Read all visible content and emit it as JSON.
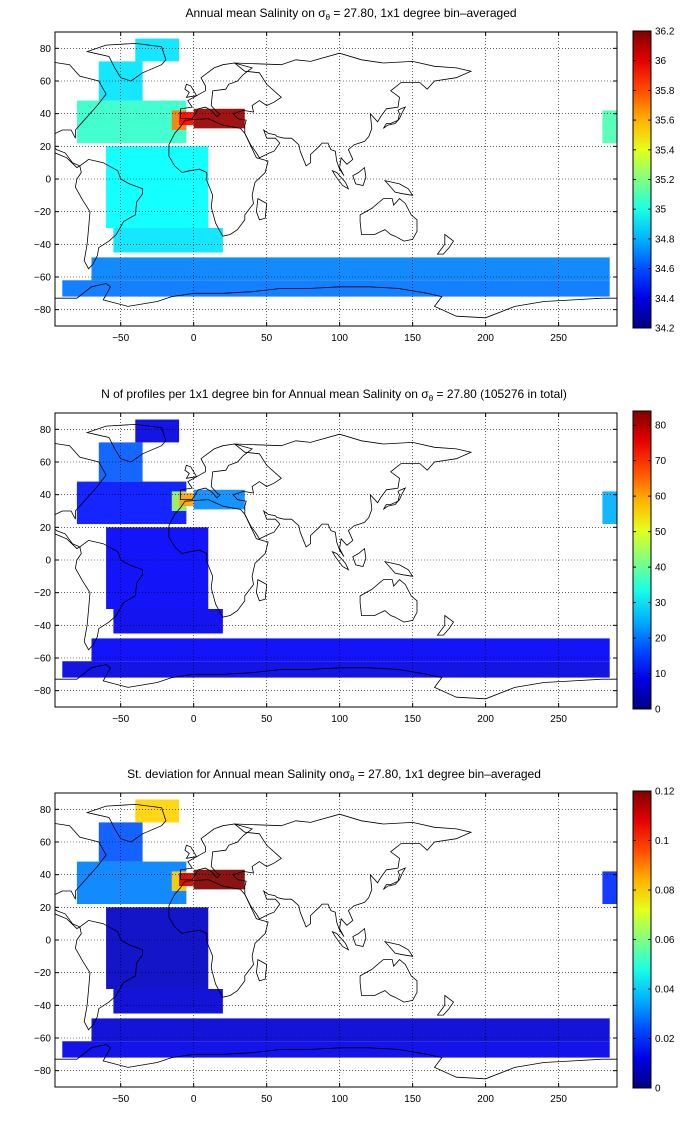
{
  "figure": {
    "panels": [
      {
        "title_pre": "Annual mean Salinity on ",
        "sigma": "σ",
        "theta": "θ",
        "title_post": " = 27.80, 1x1 degree bin–averaged"
      },
      {
        "title_pre": "N of profiles per 1x1 degree bin for Annual mean Salinity on ",
        "sigma": "σ",
        "theta": "θ",
        "title_post": " = 27.80 (105276 in total)"
      },
      {
        "title_pre": "St. deviation for Annual mean Salinity on",
        "sigma": "σ",
        "theta": "θ",
        "title_post": " = 27.80, 1x1 degree bin–averaged"
      }
    ]
  },
  "colors": {
    "colormap": "jet",
    "land_outline": "#000000",
    "grid": "#000000",
    "background": "#ffffff"
  },
  "chart_data": [
    {
      "type": "heatmap",
      "title": "Annual mean Salinity on σθ = 27.80, 1x1 degree bin–averaged",
      "xlim": [
        -95,
        290
      ],
      "ylim": [
        -90,
        90
      ],
      "xticks": [
        -50,
        0,
        50,
        100,
        150,
        200,
        250
      ],
      "yticks": [
        -80,
        -60,
        -40,
        -20,
        0,
        20,
        40,
        60,
        80
      ],
      "xticklabels": [
        "−50",
        "0",
        "50",
        "100",
        "150",
        "200",
        "250"
      ],
      "yticklabels": [
        "−80",
        "−60",
        "−40",
        "−20",
        "0",
        "20",
        "40",
        "60",
        "80"
      ],
      "grid": true,
      "colorbar": {
        "range": [
          34.2,
          36.2
        ],
        "ticks": [
          34.2,
          34.4,
          34.6,
          34.8,
          35,
          35.2,
          35.4,
          35.6,
          35.8,
          36,
          36.2
        ],
        "ticklabels": [
          "34.2",
          "34.4",
          "34.6",
          "34.8",
          "35",
          "35.2",
          "35.4",
          "35.6",
          "35.8",
          "36",
          "36.2"
        ]
      },
      "regions": [
        {
          "lon": [
            -80,
            -5
          ],
          "lat": [
            22,
            48
          ],
          "value": 35.05
        },
        {
          "lon": [
            -65,
            -35
          ],
          "lat": [
            48,
            72
          ],
          "value": 34.9
        },
        {
          "lon": [
            -40,
            -10
          ],
          "lat": [
            72,
            86
          ],
          "value": 34.9
        },
        {
          "lon": [
            -60,
            10
          ],
          "lat": [
            -30,
            20
          ],
          "value": 34.95
        },
        {
          "lon": [
            -55,
            20
          ],
          "lat": [
            -45,
            -30
          ],
          "value": 34.9
        },
        {
          "lon": [
            -15,
            -5
          ],
          "lat": [
            30,
            42
          ],
          "value": 35.7
        },
        {
          "lon": [
            -10,
            0
          ],
          "lat": [
            33,
            41
          ],
          "value": 35.95
        },
        {
          "lon": [
            0,
            35
          ],
          "lat": [
            31,
            43
          ],
          "value": 36.15
        },
        {
          "lon": [
            -70,
            285
          ],
          "lat": [
            -62,
            -48
          ],
          "value": 34.7
        },
        {
          "lon": [
            -90,
            285
          ],
          "lat": [
            -72,
            -62
          ],
          "value": 34.68
        },
        {
          "lon": [
            280,
            290
          ],
          "lat": [
            22,
            42
          ],
          "value": 35.1
        }
      ]
    },
    {
      "type": "heatmap",
      "title": "N of profiles per 1x1 degree bin for Annual mean Salinity on σθ = 27.80 (105276 in total)",
      "xlim": [
        -95,
        290
      ],
      "ylim": [
        -90,
        90
      ],
      "xticks": [
        -50,
        0,
        50,
        100,
        150,
        200,
        250
      ],
      "yticks": [
        -80,
        -60,
        -40,
        -20,
        0,
        20,
        40,
        60,
        80
      ],
      "xticklabels": [
        "−50",
        "0",
        "50",
        "100",
        "150",
        "200",
        "250"
      ],
      "yticklabels": [
        "−80",
        "−60",
        "−40",
        "−20",
        "0",
        "20",
        "40",
        "60",
        "80"
      ],
      "grid": true,
      "colorbar": {
        "range": [
          0,
          84
        ],
        "ticks": [
          0,
          10,
          20,
          30,
          40,
          50,
          60,
          70,
          80
        ],
        "ticklabels": [
          "0",
          "10",
          "20",
          "30",
          "40",
          "50",
          "60",
          "70",
          "80"
        ]
      },
      "regions": [
        {
          "lon": [
            -80,
            -5
          ],
          "lat": [
            22,
            48
          ],
          "value": 12
        },
        {
          "lon": [
            -65,
            -35
          ],
          "lat": [
            48,
            72
          ],
          "value": 18
        },
        {
          "lon": [
            -40,
            -10
          ],
          "lat": [
            72,
            86
          ],
          "value": 8
        },
        {
          "lon": [
            -60,
            10
          ],
          "lat": [
            -30,
            20
          ],
          "value": 10
        },
        {
          "lon": [
            -55,
            20
          ],
          "lat": [
            -45,
            -30
          ],
          "value": 9
        },
        {
          "lon": [
            -15,
            -5
          ],
          "lat": [
            30,
            42
          ],
          "value": 45
        },
        {
          "lon": [
            -10,
            0
          ],
          "lat": [
            33,
            41
          ],
          "value": 60
        },
        {
          "lon": [
            0,
            35
          ],
          "lat": [
            31,
            43
          ],
          "value": 22
        },
        {
          "lon": [
            -70,
            285
          ],
          "lat": [
            -62,
            -48
          ],
          "value": 10
        },
        {
          "lon": [
            -90,
            285
          ],
          "lat": [
            -72,
            -62
          ],
          "value": 8
        },
        {
          "lon": [
            280,
            290
          ],
          "lat": [
            22,
            42
          ],
          "value": 25
        }
      ]
    },
    {
      "type": "heatmap",
      "title": "St. deviation for Annual mean Salinity on σθ = 27.80, 1x1 degree bin–averaged",
      "xlim": [
        -95,
        290
      ],
      "ylim": [
        -90,
        90
      ],
      "xticks": [
        -50,
        0,
        50,
        100,
        150,
        200,
        250
      ],
      "yticks": [
        -80,
        -60,
        -40,
        -20,
        0,
        20,
        40,
        60,
        80
      ],
      "xticklabels": [
        "−50",
        "0",
        "50",
        "100",
        "150",
        "200",
        "250"
      ],
      "yticklabels": [
        "−80",
        "−60",
        "−40",
        "−20",
        "0",
        "20",
        "40",
        "60",
        "80"
      ],
      "grid": true,
      "colorbar": {
        "range": [
          0,
          0.12
        ],
        "ticks": [
          0,
          0.02,
          0.04,
          0.06,
          0.08,
          0.1,
          0.12
        ],
        "ticklabels": [
          "0",
          "0.02",
          "0.04",
          "0.06",
          "0.08",
          "0.1",
          "0.12"
        ]
      },
      "regions": [
        {
          "lon": [
            -80,
            -5
          ],
          "lat": [
            22,
            48
          ],
          "value": 0.03
        },
        {
          "lon": [
            -65,
            -35
          ],
          "lat": [
            48,
            72
          ],
          "value": 0.025
        },
        {
          "lon": [
            -40,
            -10
          ],
          "lat": [
            72,
            86
          ],
          "value": 0.08
        },
        {
          "lon": [
            -60,
            10
          ],
          "lat": [
            -30,
            20
          ],
          "value": 0.008
        },
        {
          "lon": [
            -55,
            20
          ],
          "lat": [
            -45,
            -30
          ],
          "value": 0.01
        },
        {
          "lon": [
            -15,
            -5
          ],
          "lat": [
            30,
            42
          ],
          "value": 0.08
        },
        {
          "lon": [
            -10,
            0
          ],
          "lat": [
            33,
            41
          ],
          "value": 0.11
        },
        {
          "lon": [
            0,
            35
          ],
          "lat": [
            31,
            43
          ],
          "value": 0.12
        },
        {
          "lon": [
            -70,
            285
          ],
          "lat": [
            -62,
            -48
          ],
          "value": 0.01
        },
        {
          "lon": [
            -90,
            285
          ],
          "lat": [
            -72,
            -62
          ],
          "value": 0.012
        },
        {
          "lon": [
            280,
            290
          ],
          "lat": [
            22,
            42
          ],
          "value": 0.02
        }
      ]
    }
  ]
}
